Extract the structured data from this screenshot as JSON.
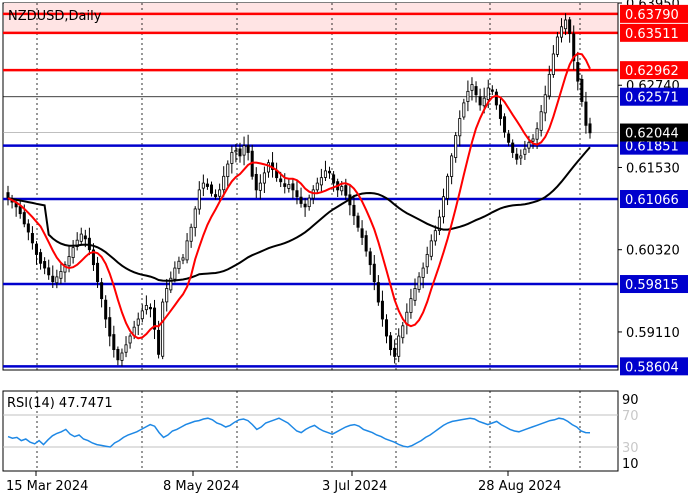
{
  "title": "NZDUSD,Daily",
  "rsi_title": "RSI(14) 47.7471",
  "chart_data": {
    "type": "candlestick",
    "symbol": "NZDUSD",
    "timeframe": "Daily",
    "price_axis": {
      "min": 0.5855,
      "max": 0.6395,
      "tick_labels": [
        "0.63950",
        "0.62740",
        "0.61530",
        "0.60320",
        "0.59110"
      ]
    },
    "x_axis": {
      "dates": [
        "15 Mar 2024",
        "8 May 2024",
        "3 Jul 2024",
        "28 Aug 2024"
      ]
    },
    "horizontal_levels": [
      {
        "value": 0.6379,
        "label": "0.63790",
        "color": "#ff0000",
        "kind": "resistance"
      },
      {
        "value": 0.63511,
        "label": "0.63511",
        "color": "#ff0000",
        "kind": "resistance"
      },
      {
        "value": 0.62962,
        "label": "0.62962",
        "color": "#ff0000",
        "kind": "resistance"
      },
      {
        "value": 0.61851,
        "label": "0.61851",
        "color": "#0000cd",
        "kind": "support"
      },
      {
        "value": 0.61066,
        "label": "0.61066",
        "color": "#0000cd",
        "kind": "support"
      },
      {
        "value": 0.59815,
        "label": "0.59815",
        "color": "#0000cd",
        "kind": "support"
      },
      {
        "value": 0.58604,
        "label": "0.58604",
        "color": "#0000cd",
        "kind": "support"
      }
    ],
    "resistance_zone": {
      "from": 0.63511,
      "to": 0.6395,
      "color": "#ffe4e4"
    },
    "price_tags": [
      {
        "value": 0.62571,
        "label": "0.62571",
        "color": "#0000cd"
      },
      {
        "value": 0.62044,
        "label": "0.62044",
        "color": "#000000"
      }
    ],
    "close_series": [
      0.6108,
      0.6102,
      0.6095,
      0.6085,
      0.607,
      0.6058,
      0.6042,
      0.6025,
      0.6012,
      0.6005,
      0.5995,
      0.5985,
      0.5992,
      0.6,
      0.601,
      0.6022,
      0.6035,
      0.6046,
      0.6055,
      0.6048,
      0.6032,
      0.601,
      0.5985,
      0.596,
      0.593,
      0.5905,
      0.5885,
      0.587,
      0.588,
      0.5892,
      0.5905,
      0.5918,
      0.593,
      0.5942,
      0.595,
      0.5945,
      0.5915,
      0.5878,
      0.5955,
      0.5975,
      0.599,
      0.6005,
      0.6015,
      0.602,
      0.6045,
      0.6065,
      0.6092,
      0.612,
      0.613,
      0.6125,
      0.6115,
      0.611,
      0.612,
      0.614,
      0.6158,
      0.6175,
      0.6178,
      0.617,
      0.6185,
      0.6175,
      0.614,
      0.612,
      0.613,
      0.6145,
      0.616,
      0.615,
      0.6138,
      0.6132,
      0.6125,
      0.6128,
      0.612,
      0.611,
      0.61,
      0.6095,
      0.6108,
      0.612,
      0.613,
      0.6138,
      0.6148,
      0.6145,
      0.613,
      0.612,
      0.6125,
      0.6112,
      0.6098,
      0.6082,
      0.6065,
      0.605,
      0.603,
      0.601,
      0.5985,
      0.5955,
      0.593,
      0.5905,
      0.5885,
      0.5875,
      0.5905,
      0.592,
      0.594,
      0.596,
      0.5975,
      0.5992,
      0.6005,
      0.6025,
      0.6045,
      0.606,
      0.608,
      0.611,
      0.614,
      0.617,
      0.62,
      0.6225,
      0.6248,
      0.6265,
      0.6275,
      0.626,
      0.6245,
      0.6255,
      0.627,
      0.6265,
      0.6245,
      0.6225,
      0.6205,
      0.619,
      0.6175,
      0.6165,
      0.617,
      0.618,
      0.619,
      0.6195,
      0.621,
      0.6235,
      0.626,
      0.629,
      0.632,
      0.6345,
      0.636,
      0.637,
      0.635,
      0.631,
      0.628,
      0.625,
      0.6215,
      0.6204
    ],
    "series": [
      {
        "color": "#ff0000",
        "kind": "fast-moving-average"
      },
      {
        "color": "#000000",
        "kind": "slow-moving-average"
      }
    ],
    "rsi": {
      "period": 14,
      "value": 47.7471,
      "min": 0,
      "max": 100,
      "levels": [
        70,
        30
      ],
      "tick_labels": [
        "90",
        "70",
        "30",
        "10"
      ],
      "color": "#1e88e5",
      "values": [
        43,
        41,
        42,
        38,
        40,
        36,
        34,
        38,
        33,
        39,
        44,
        47,
        49,
        52,
        46,
        43,
        45,
        40,
        38,
        35,
        33,
        32,
        31,
        30,
        35,
        38,
        42,
        45,
        47,
        49,
        52,
        55,
        58,
        56,
        48,
        42,
        45,
        50,
        52,
        55,
        58,
        60,
        62,
        63,
        65,
        66,
        64,
        60,
        58,
        55,
        57,
        61,
        64,
        65,
        63,
        58,
        52,
        55,
        60,
        62,
        64,
        66,
        63,
        60,
        55,
        50,
        48,
        52,
        55,
        57,
        53,
        50,
        48,
        46,
        49,
        52,
        55,
        57,
        58,
        56,
        52,
        50,
        48,
        45,
        43,
        40,
        38,
        36,
        33,
        31,
        30,
        32,
        35,
        38,
        42,
        45,
        49,
        53,
        57,
        60,
        62,
        63,
        64,
        65,
        66,
        65,
        62,
        60,
        58,
        60,
        62,
        58,
        55,
        52,
        50,
        49,
        51,
        53,
        55,
        57,
        59,
        61,
        63,
        64,
        66,
        65,
        62,
        58,
        55,
        50,
        48,
        47.7471
      ]
    }
  }
}
